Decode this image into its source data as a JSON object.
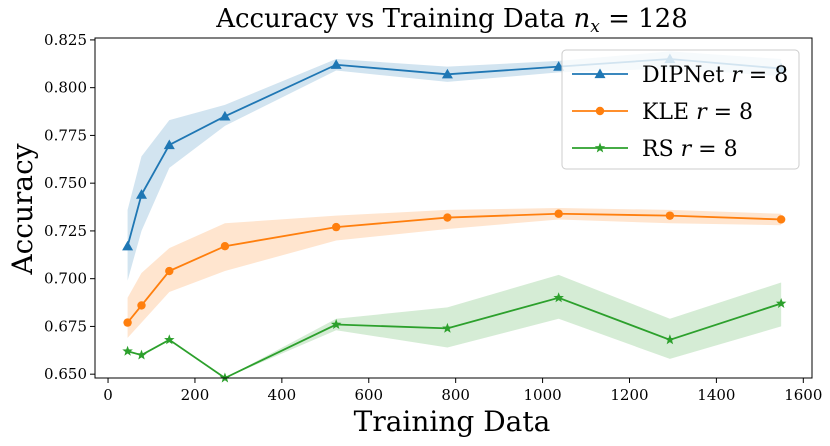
{
  "chart_data": {
    "type": "line",
    "title": "Accuracy vs Training Data n_x = 128",
    "title_parts": {
      "prefix": "Accuracy vs Training Data ",
      "var": "n",
      "sub": "x",
      "suffix": " = 128"
    },
    "xlabel": "Training Data",
    "ylabel": "Accuracy",
    "xlim": [
      -30,
      1620
    ],
    "ylim": [
      0.648,
      0.826
    ],
    "xticks": [
      0,
      200,
      400,
      600,
      800,
      1000,
      1200,
      1400,
      1600
    ],
    "yticks": [
      0.65,
      0.675,
      0.7,
      0.725,
      0.75,
      0.775,
      0.8,
      0.825
    ],
    "ytick_labels": [
      "0.650",
      "0.675",
      "0.700",
      "0.725",
      "0.750",
      "0.775",
      "0.800",
      "0.825"
    ],
    "legend_position": "top-right",
    "series": [
      {
        "name": "DIPNet r = 8",
        "legend": {
          "prefix": "DIPNet ",
          "var": "r",
          "suffix": " = 8"
        },
        "color": "#1f77b4",
        "marker": "triangle",
        "x": [
          45,
          77,
          141,
          269,
          525,
          781,
          1037,
          1293,
          1549
        ],
        "y": [
          0.717,
          0.744,
          0.77,
          0.785,
          0.812,
          0.807,
          0.811,
          0.815,
          0.81
        ],
        "lower": [
          0.699,
          0.725,
          0.758,
          0.78,
          0.809,
          0.803,
          0.808,
          0.81,
          0.806
        ],
        "upper": [
          0.736,
          0.764,
          0.783,
          0.791,
          0.815,
          0.811,
          0.814,
          0.819,
          0.815
        ]
      },
      {
        "name": "KLE r = 8",
        "legend": {
          "prefix": "KLE ",
          "var": "r",
          "suffix": " = 8"
        },
        "color": "#ff7f0e",
        "marker": "circle",
        "x": [
          45,
          77,
          141,
          269,
          525,
          781,
          1037,
          1293,
          1549
        ],
        "y": [
          0.677,
          0.686,
          0.704,
          0.717,
          0.727,
          0.732,
          0.734,
          0.733,
          0.731
        ],
        "lower": [
          0.669,
          0.677,
          0.693,
          0.704,
          0.72,
          0.726,
          0.731,
          0.729,
          0.728
        ],
        "upper": [
          0.69,
          0.703,
          0.716,
          0.729,
          0.733,
          0.736,
          0.737,
          0.736,
          0.734
        ]
      },
      {
        "name": "RS r = 8",
        "legend": {
          "prefix": "RS ",
          "var": "r",
          "suffix": " = 8"
        },
        "color": "#2ca02c",
        "marker": "star",
        "x": [
          45,
          77,
          141,
          269,
          525,
          781,
          1037,
          1293,
          1549
        ],
        "y": [
          0.662,
          0.66,
          0.668,
          0.648,
          0.676,
          0.674,
          0.69,
          0.668,
          0.687
        ],
        "lower": [
          0.662,
          0.66,
          0.668,
          0.648,
          0.673,
          0.664,
          0.679,
          0.658,
          0.675
        ],
        "upper": [
          0.662,
          0.66,
          0.668,
          0.648,
          0.679,
          0.685,
          0.702,
          0.679,
          0.698
        ]
      }
    ]
  }
}
